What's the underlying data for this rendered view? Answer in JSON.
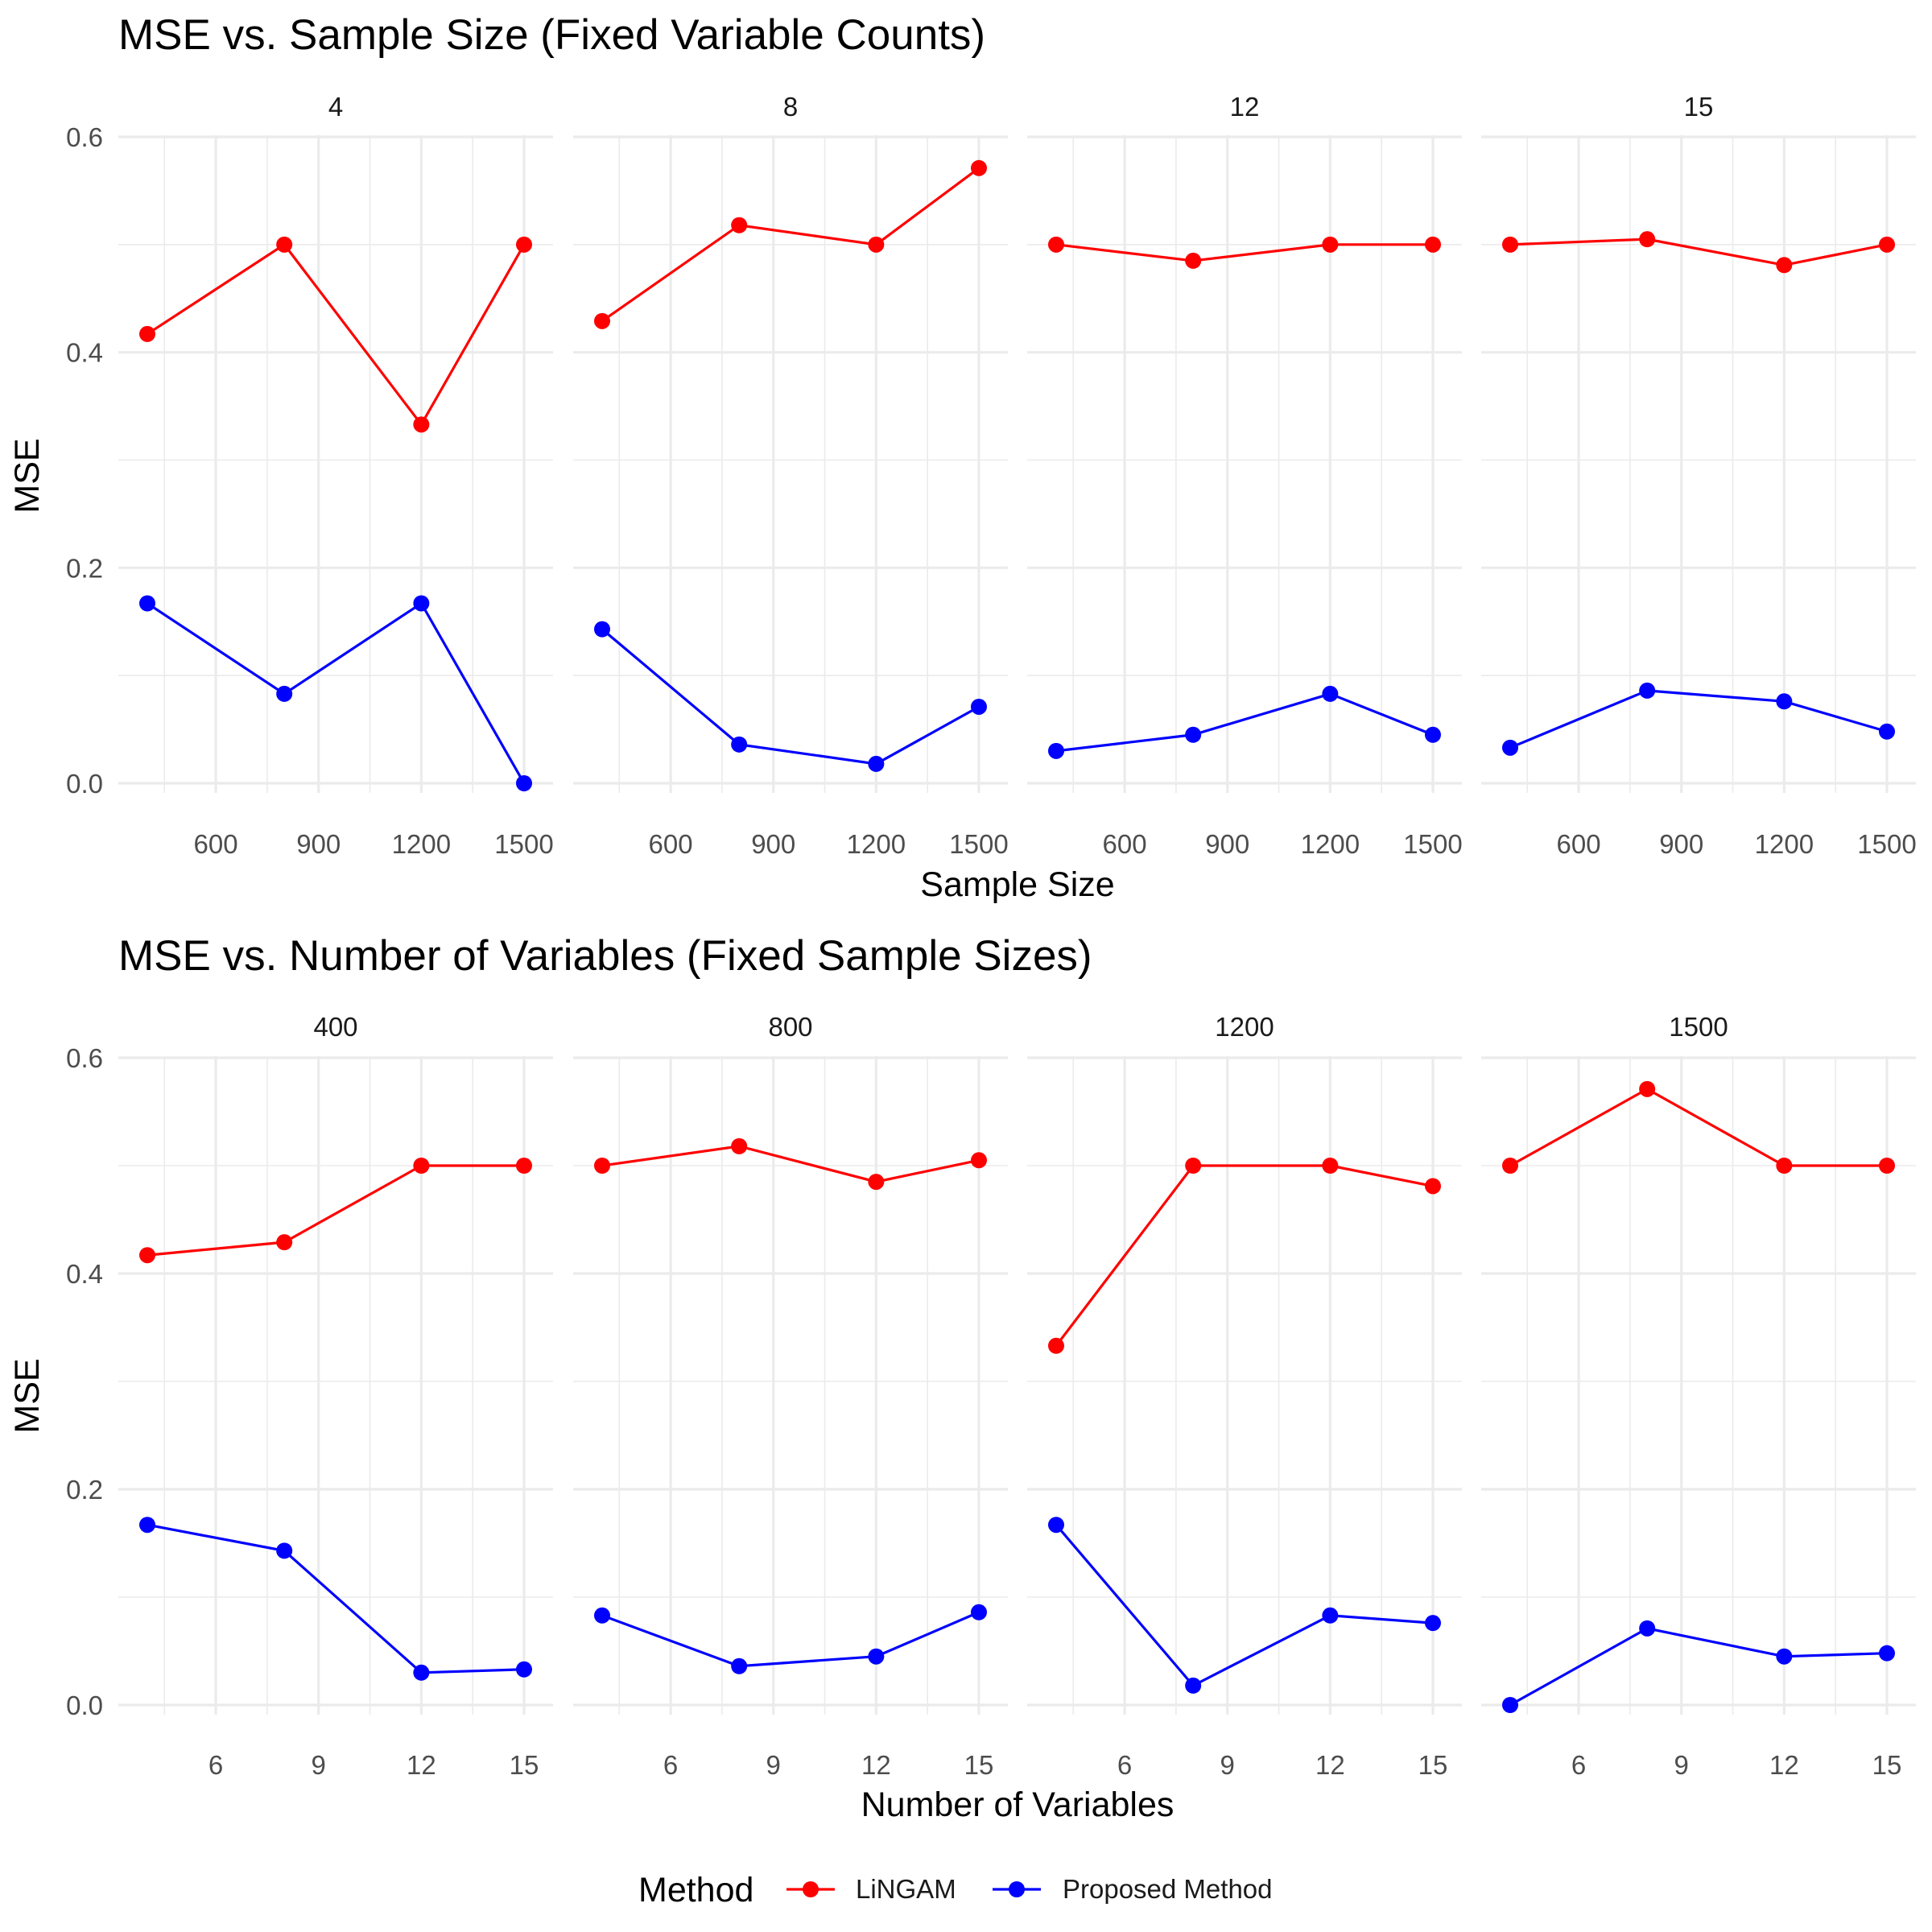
{
  "colors": {
    "LiNGAM": "#ff0000",
    "Proposed Method": "#0000ff"
  },
  "legend": {
    "title": "Method",
    "items": [
      {
        "label": "LiNGAM",
        "color": "#ff0000"
      },
      {
        "label": "Proposed Method",
        "color": "#0000ff"
      }
    ],
    "position": "bottom"
  },
  "chart_data": [
    {
      "type": "line",
      "title": "MSE vs. Sample Size (Fixed Variable Counts)",
      "xlabel": "Sample Size",
      "ylabel": "MSE",
      "x": [
        400,
        800,
        1200,
        1500
      ],
      "xticks": [
        600,
        900,
        1200,
        1500
      ],
      "yticks": [
        "0.0",
        "0.2",
        "0.4",
        "0.6"
      ],
      "ylim": [
        -0.01,
        0.6
      ],
      "xlim": [
        400,
        1500
      ],
      "grid": true,
      "facets": [
        {
          "label": "4",
          "series": [
            {
              "name": "LiNGAM",
              "values": [
                0.417,
                0.5,
                0.333,
                0.5
              ]
            },
            {
              "name": "Proposed Method",
              "values": [
                0.167,
                0.083,
                0.167,
                0.0
              ]
            }
          ]
        },
        {
          "label": "8",
          "series": [
            {
              "name": "LiNGAM",
              "values": [
                0.429,
                0.518,
                0.5,
                0.571
              ]
            },
            {
              "name": "Proposed Method",
              "values": [
                0.143,
                0.036,
                0.018,
                0.071
              ]
            }
          ]
        },
        {
          "label": "12",
          "series": [
            {
              "name": "LiNGAM",
              "values": [
                0.5,
                0.485,
                0.5,
                0.5
              ]
            },
            {
              "name": "Proposed Method",
              "values": [
                0.03,
                0.045,
                0.083,
                0.045
              ]
            }
          ]
        },
        {
          "label": "15",
          "series": [
            {
              "name": "LiNGAM",
              "values": [
                0.5,
                0.505,
                0.481,
                0.5
              ]
            },
            {
              "name": "Proposed Method",
              "values": [
                0.033,
                0.086,
                0.076,
                0.048
              ]
            }
          ]
        }
      ]
    },
    {
      "type": "line",
      "title": "MSE vs. Number of Variables (Fixed Sample Sizes)",
      "xlabel": "Number of Variables",
      "ylabel": "MSE",
      "x": [
        4,
        8,
        12,
        15
      ],
      "xticks": [
        6,
        9,
        12,
        15
      ],
      "yticks": [
        "0.0",
        "0.2",
        "0.4",
        "0.6"
      ],
      "ylim": [
        -0.01,
        0.6
      ],
      "xlim": [
        4,
        15
      ],
      "grid": true,
      "facets": [
        {
          "label": "400",
          "series": [
            {
              "name": "LiNGAM",
              "values": [
                0.417,
                0.429,
                0.5,
                0.5
              ]
            },
            {
              "name": "Proposed Method",
              "values": [
                0.167,
                0.143,
                0.03,
                0.033
              ]
            }
          ]
        },
        {
          "label": "800",
          "series": [
            {
              "name": "LiNGAM",
              "values": [
                0.5,
                0.518,
                0.485,
                0.505
              ]
            },
            {
              "name": "Proposed Method",
              "values": [
                0.083,
                0.036,
                0.045,
                0.086
              ]
            }
          ]
        },
        {
          "label": "1200",
          "series": [
            {
              "name": "LiNGAM",
              "values": [
                0.333,
                0.5,
                0.5,
                0.481
              ]
            },
            {
              "name": "Proposed Method",
              "values": [
                0.167,
                0.018,
                0.083,
                0.076
              ]
            }
          ]
        },
        {
          "label": "1500",
          "series": [
            {
              "name": "LiNGAM",
              "values": [
                0.5,
                0.571,
                0.5,
                0.5
              ]
            },
            {
              "name": "Proposed Method",
              "values": [
                0.0,
                0.071,
                0.045,
                0.048
              ]
            }
          ]
        }
      ]
    }
  ]
}
